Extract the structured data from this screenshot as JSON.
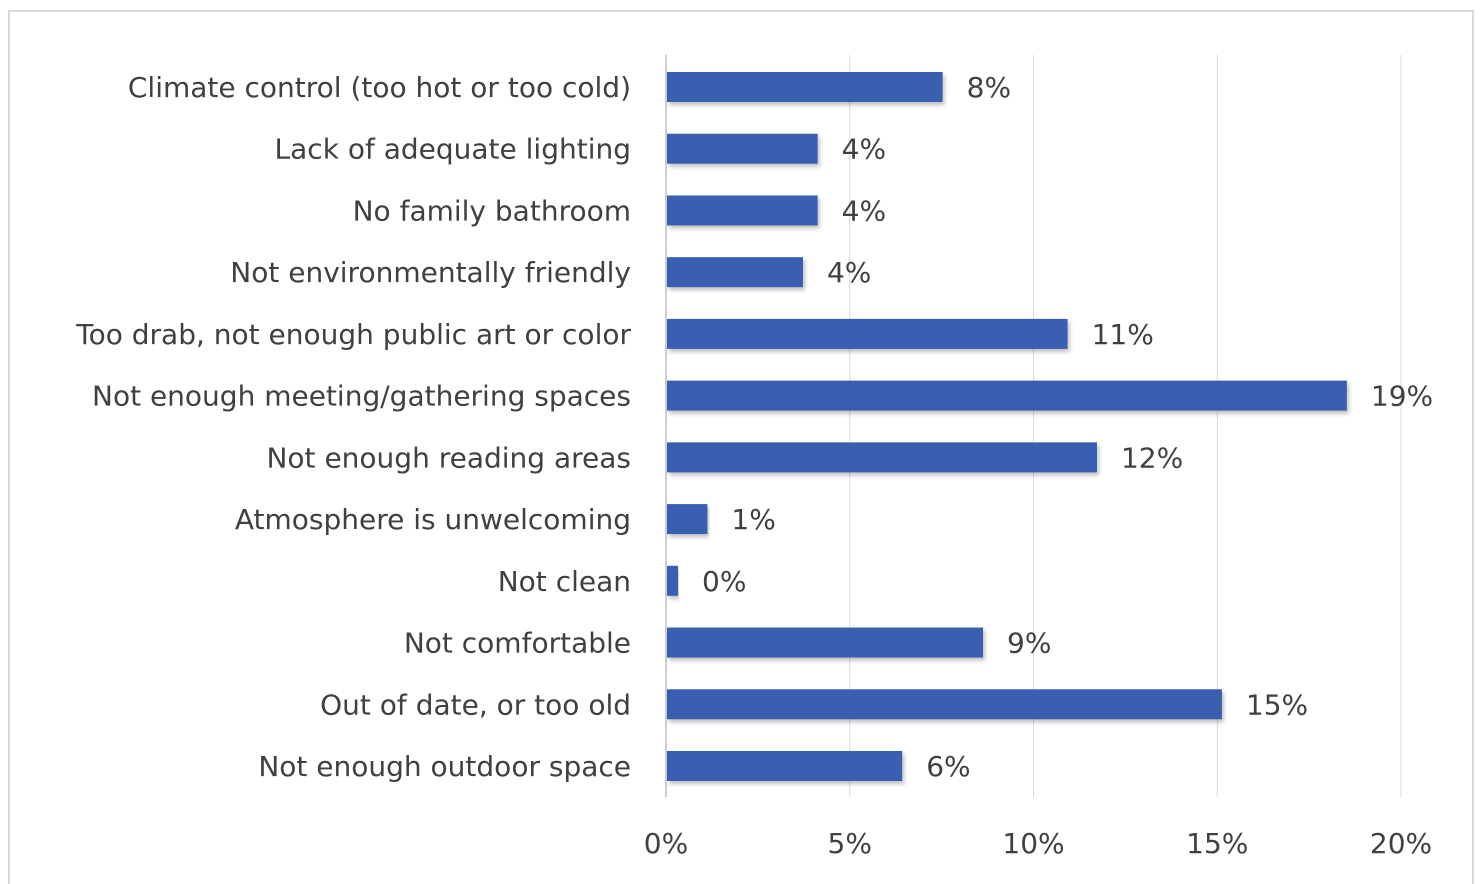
{
  "chart_data": {
    "type": "bar",
    "orientation": "horizontal",
    "categories": [
      "Climate control (too hot or too cold)",
      "Lack of adequate lighting",
      "No family bathroom",
      "Not environmentally friendly",
      "Too drab, not enough public art or color",
      "Not enough meeting/gathering spaces",
      "Not enough reading areas",
      "Atmosphere is unwelcoming",
      "Not clean",
      "Not comfortable",
      "Out of date, or too old",
      "Not enough outdoor space"
    ],
    "values": [
      7.5,
      4.1,
      4.1,
      3.7,
      10.9,
      18.5,
      11.7,
      1.1,
      0.3,
      8.6,
      15.1,
      6.4
    ],
    "data_labels": [
      "8%",
      "4%",
      "4%",
      "4%",
      "11%",
      "19%",
      "12%",
      "1%",
      "0%",
      "9%",
      "15%",
      "6%"
    ],
    "xlim": [
      0,
      20
    ],
    "x_ticks": [
      0,
      5,
      10,
      15,
      20
    ],
    "x_tick_labels": [
      "0%",
      "5%",
      "10%",
      "15%",
      "20%"
    ],
    "grid": "vertical",
    "bar_color": "#3a5fb0",
    "title": "",
    "xlabel": "",
    "ylabel": ""
  }
}
